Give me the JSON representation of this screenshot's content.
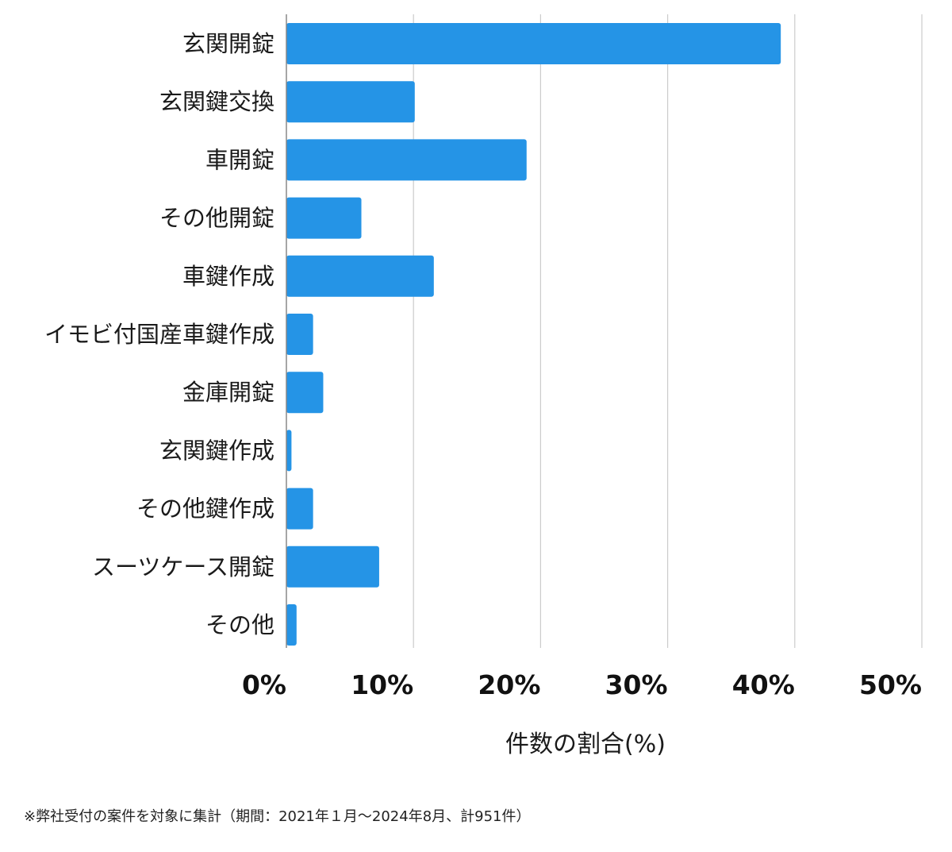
{
  "chart_data": {
    "type": "bar",
    "orientation": "horizontal",
    "categories": [
      "玄関開錠",
      "玄関鍵交換",
      "車開錠",
      "その他開錠",
      "車鍵作成",
      "イモビ付国産車鍵作成",
      "金庫開錠",
      "玄関鍵作成",
      "その他鍵作成",
      "スーツケース開錠",
      "その他"
    ],
    "values": [
      38.9,
      10.1,
      18.9,
      5.9,
      11.6,
      2.1,
      2.9,
      0.4,
      2.1,
      7.3,
      0.8
    ],
    "xlim": [
      0,
      50
    ],
    "xticks": [
      0,
      10,
      20,
      30,
      40,
      50
    ],
    "xtick_labels": [
      "0%",
      "10%",
      "20%",
      "30%",
      "40%",
      "50%"
    ],
    "xlabel": "件数の割合(%)",
    "ylabel": "",
    "grid": "vertical",
    "bar_color": "#2594e6",
    "grid_color": "#cccccc",
    "axis_color": "#888888"
  },
  "footnote": "※弊社受付の案件を対象に集計（期間：2021年１月〜2024年8月、計951件）"
}
